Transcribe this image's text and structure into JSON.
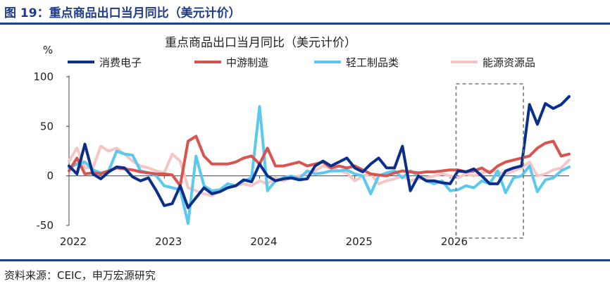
{
  "figure": {
    "title": "图 19：重点商品出口当月同比（美元计价）",
    "source": "资料来源：CEIC，申万宏源研究"
  },
  "chart_data": {
    "type": "line",
    "title": "重点商品出口当月同比（美元计价）",
    "ylabel": "%",
    "xlabel": "",
    "ylim": [
      -50,
      100
    ],
    "yticks": [
      -50,
      0,
      50,
      100
    ],
    "xticks": [
      "2022",
      "2023",
      "2024",
      "2025",
      "2026"
    ],
    "x_start": "2022-01",
    "x_interval": "month",
    "grid": false,
    "legend_position": "top",
    "highlight_box": {
      "x_from": "2026-03",
      "x_to": "2026-09",
      "style": "dashed"
    },
    "series": [
      {
        "name": "消费电子",
        "color": "#0a2f8a",
        "values": [
          10,
          2,
          32,
          2,
          -3,
          4,
          9,
          8,
          -1,
          -5,
          -2,
          -15,
          -30,
          -28,
          -10,
          -32,
          -22,
          -12,
          -18,
          -16,
          -12,
          -10,
          -4,
          -6,
          12,
          0,
          -5,
          -3,
          -2,
          -4,
          -3,
          10,
          15,
          10,
          14,
          18,
          8,
          4,
          12,
          18,
          8,
          8,
          30,
          -15,
          0,
          -5,
          -5,
          -7,
          -8,
          5,
          4,
          7,
          0,
          -8,
          -8,
          5,
          8,
          10,
          72,
          52,
          73,
          68,
          72,
          80
        ]
      },
      {
        "name": "中游制造",
        "color": "#d9534f",
        "values": [
          5,
          18,
          2,
          3,
          2,
          5,
          8,
          7,
          6,
          4,
          3,
          2,
          2,
          1,
          -10,
          35,
          40,
          20,
          12,
          12,
          12,
          14,
          18,
          20,
          12,
          28,
          10,
          10,
          12,
          14,
          10,
          12,
          14,
          8,
          10,
          8,
          10,
          6,
          2,
          1,
          0,
          3,
          5,
          4,
          3,
          4,
          4,
          5,
          6,
          6,
          4,
          5,
          8,
          3,
          10,
          14,
          16,
          18,
          20,
          28,
          33,
          35,
          20,
          22
        ]
      },
      {
        "name": "轻工制品类",
        "color": "#5bc8ee",
        "values": [
          8,
          12,
          14,
          6,
          3,
          5,
          25,
          22,
          21,
          5,
          3,
          0,
          -10,
          -12,
          -14,
          -48,
          20,
          -10,
          -15,
          -14,
          -8,
          -10,
          -5,
          -2,
          70,
          -15,
          -5,
          -2,
          0,
          -3,
          5,
          2,
          3,
          5,
          5,
          6,
          2,
          0,
          -18,
          0,
          3,
          5,
          -2,
          5,
          0,
          -5,
          -8,
          -5,
          -15,
          -14,
          -10,
          -12,
          -5,
          -8,
          5,
          -17,
          -2,
          0,
          10,
          -16,
          -4,
          -2,
          5,
          9
        ]
      },
      {
        "name": "能源资源品",
        "color": "#f5c6c6",
        "values": [
          15,
          28,
          8,
          8,
          30,
          25,
          28,
          22,
          15,
          10,
          8,
          5,
          3,
          22,
          15,
          -12,
          -15,
          -18,
          -20,
          -15,
          -12,
          -10,
          -8,
          -10,
          -5,
          -8,
          -2,
          -5,
          -2,
          0,
          2,
          5,
          10,
          8,
          5,
          3,
          -5,
          0,
          2,
          -8,
          -5,
          -3,
          0,
          -5,
          -3,
          -2,
          0,
          2,
          0,
          -2,
          2,
          0,
          3,
          5,
          4,
          2,
          5,
          8,
          14,
          0,
          2,
          6,
          8,
          16
        ]
      }
    ]
  }
}
